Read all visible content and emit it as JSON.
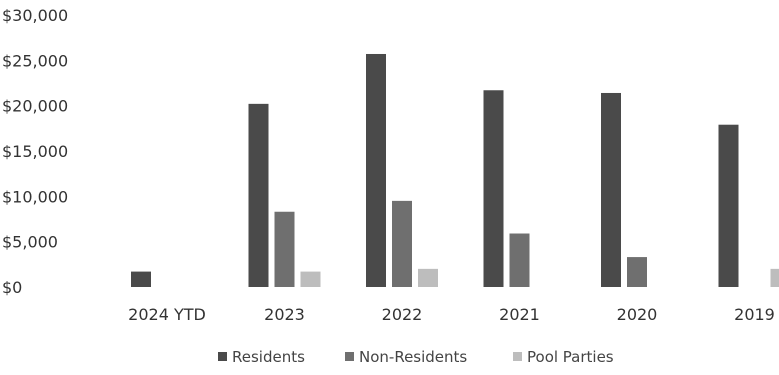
{
  "chart_data": {
    "type": "bar",
    "categories": [
      "2024 YTD",
      "2023",
      "2022",
      "2021",
      "2020",
      "2019"
    ],
    "series": [
      {
        "name": "Residents",
        "values": [
          1700,
          20200,
          25700,
          21700,
          21400,
          17900
        ],
        "color": "#4a4a4a"
      },
      {
        "name": "Non-Residents",
        "values": [
          0,
          8300,
          9500,
          5900,
          3300,
          0
        ],
        "color": "#6f6f6f"
      },
      {
        "name": "Pool Parties",
        "values": [
          0,
          1700,
          2000,
          0,
          0,
          2000
        ],
        "color": "#bdbdbd"
      }
    ],
    "y_ticks": [
      "$0",
      "$5,000",
      "$10,000",
      "$15,000",
      "$20,000",
      "$25,000",
      "$30,000"
    ],
    "ylim": [
      0,
      30000
    ],
    "title": "",
    "xlabel": "",
    "ylabel": "",
    "grid": false,
    "legend_position": "bottom"
  }
}
